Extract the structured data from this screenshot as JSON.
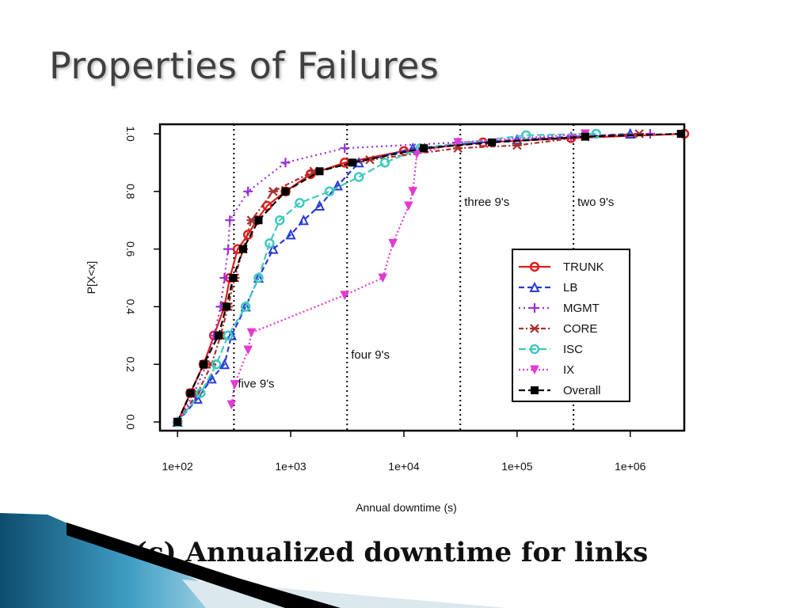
{
  "slide": {
    "title": "Properties of Failures",
    "caption": "(c) Annualized downtime for links"
  },
  "chart_data": {
    "type": "line",
    "xlabel": "Annual downtime (s)",
    "ylabel": "P[X<x]",
    "x_scale": "log",
    "xlim": [
      70,
      3000000
    ],
    "ylim": [
      0,
      1.0
    ],
    "x_ticks": [
      {
        "value": 100,
        "label": "1e+02"
      },
      {
        "value": 1000,
        "label": "1e+03"
      },
      {
        "value": 10000,
        "label": "1e+04"
      },
      {
        "value": 100000,
        "label": "1e+05"
      },
      {
        "value": 1000000,
        "label": "1e+06"
      }
    ],
    "y_ticks": [
      {
        "value": 0.0,
        "label": "0.0"
      },
      {
        "value": 0.2,
        "label": "0.2"
      },
      {
        "value": 0.4,
        "label": "0.4"
      },
      {
        "value": 0.6,
        "label": "0.6"
      },
      {
        "value": 0.8,
        "label": "0.8"
      },
      {
        "value": 1.0,
        "label": "1.0"
      }
    ],
    "reference_lines": [
      {
        "x": 315,
        "label": "five 9's",
        "label_y": 0.12
      },
      {
        "x": 3150,
        "label": "four 9's",
        "label_y": 0.22
      },
      {
        "x": 31500,
        "label": "three 9's",
        "label_y": 0.75
      },
      {
        "x": 315000,
        "label": "two 9's",
        "label_y": 0.75
      }
    ],
    "legend_position": "bottom-right",
    "series": [
      {
        "name": "TRUNK",
        "color": "#e21b1b",
        "dash": "",
        "marker": "circle",
        "points": [
          [
            100,
            0.0
          ],
          [
            130,
            0.1
          ],
          [
            170,
            0.2
          ],
          [
            210,
            0.3
          ],
          [
            260,
            0.4
          ],
          [
            290,
            0.5
          ],
          [
            340,
            0.6
          ],
          [
            420,
            0.65
          ],
          [
            500,
            0.7
          ],
          [
            620,
            0.75
          ],
          [
            900,
            0.8
          ],
          [
            1500,
            0.86
          ],
          [
            3000,
            0.9
          ],
          [
            10000,
            0.94
          ],
          [
            50000,
            0.97
          ],
          [
            300000,
            0.985
          ],
          [
            3000000,
            1.0
          ]
        ]
      },
      {
        "name": "LB",
        "color": "#2a3bd6",
        "dash": "7,4",
        "marker": "triangle",
        "points": [
          [
            100,
            0.0
          ],
          [
            150,
            0.08
          ],
          [
            200,
            0.15
          ],
          [
            260,
            0.2
          ],
          [
            300,
            0.3
          ],
          [
            400,
            0.4
          ],
          [
            520,
            0.5
          ],
          [
            700,
            0.6
          ],
          [
            1000,
            0.65
          ],
          [
            1300,
            0.7
          ],
          [
            1800,
            0.75
          ],
          [
            2600,
            0.82
          ],
          [
            4000,
            0.9
          ],
          [
            12000,
            0.95
          ],
          [
            100000,
            0.98
          ],
          [
            1000000,
            1.0
          ]
        ]
      },
      {
        "name": "MGMT",
        "color": "#9a30d8",
        "dash": "2,4",
        "marker": "plus",
        "points": [
          [
            100,
            0.0
          ],
          [
            140,
            0.1
          ],
          [
            180,
            0.2
          ],
          [
            210,
            0.3
          ],
          [
            240,
            0.4
          ],
          [
            260,
            0.5
          ],
          [
            280,
            0.6
          ],
          [
            290,
            0.7
          ],
          [
            420,
            0.8
          ],
          [
            900,
            0.9
          ],
          [
            3000,
            0.95
          ],
          [
            30000,
            0.97
          ],
          [
            300000,
            0.99
          ],
          [
            1500000,
            1.0
          ]
        ]
      },
      {
        "name": "CORE",
        "color": "#a8322f",
        "dash": "6,3,2,3",
        "marker": "star",
        "points": [
          [
            100,
            0.0
          ],
          [
            150,
            0.1
          ],
          [
            200,
            0.2
          ],
          [
            240,
            0.3
          ],
          [
            280,
            0.4
          ],
          [
            320,
            0.5
          ],
          [
            380,
            0.6
          ],
          [
            450,
            0.7
          ],
          [
            700,
            0.8
          ],
          [
            1600,
            0.87
          ],
          [
            5000,
            0.91
          ],
          [
            30000,
            0.95
          ],
          [
            100000,
            0.96
          ],
          [
            400000,
            0.99
          ],
          [
            1200000,
            1.0
          ]
        ]
      },
      {
        "name": "ISC",
        "color": "#40c9c0",
        "dash": "9,4",
        "marker": "circle",
        "points": [
          [
            100,
            0.0
          ],
          [
            160,
            0.1
          ],
          [
            220,
            0.2
          ],
          [
            280,
            0.3
          ],
          [
            400,
            0.4
          ],
          [
            520,
            0.5
          ],
          [
            650,
            0.62
          ],
          [
            800,
            0.7
          ],
          [
            1200,
            0.76
          ],
          [
            2200,
            0.8
          ],
          [
            4000,
            0.85
          ],
          [
            6800,
            0.9
          ],
          [
            14000,
            0.95
          ],
          [
            120000,
            0.995
          ],
          [
            500000,
            1.0
          ]
        ]
      },
      {
        "name": "IX",
        "color": "#e23ad4",
        "dash": "2,3",
        "marker": "tri-down",
        "points": [
          [
            300,
            0.06
          ],
          [
            320,
            0.13
          ],
          [
            420,
            0.25
          ],
          [
            450,
            0.31
          ],
          [
            3000,
            0.44
          ],
          [
            6500,
            0.5
          ],
          [
            8000,
            0.62
          ],
          [
            11000,
            0.75
          ],
          [
            12000,
            0.8
          ],
          [
            13000,
            0.93
          ],
          [
            30000,
            0.97
          ],
          [
            400000,
            1.0
          ]
        ]
      },
      {
        "name": "Overall",
        "color": "#000000",
        "dash": "8,4",
        "marker": "square",
        "points": [
          [
            100,
            0.0
          ],
          [
            130,
            0.1
          ],
          [
            170,
            0.2
          ],
          [
            230,
            0.3
          ],
          [
            270,
            0.4
          ],
          [
            310,
            0.5
          ],
          [
            380,
            0.6
          ],
          [
            520,
            0.7
          ],
          [
            900,
            0.8
          ],
          [
            1800,
            0.87
          ],
          [
            3500,
            0.9
          ],
          [
            15000,
            0.95
          ],
          [
            60000,
            0.97
          ],
          [
            400000,
            0.99
          ],
          [
            2800000,
            1.0
          ]
        ]
      }
    ]
  }
}
